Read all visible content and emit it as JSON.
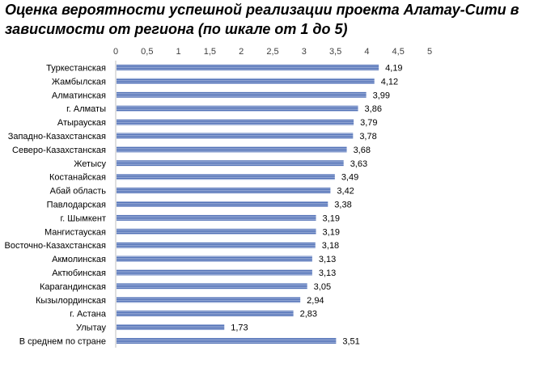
{
  "chart_data": {
    "type": "bar",
    "orientation": "horizontal",
    "title": "Оценка вероятности успешной реализации проекта Алатау-Сити в зависимости от региона (по шкале от 1 до 5)",
    "xlim": [
      0,
      5
    ],
    "x_ticks": [
      "0",
      "0,5",
      "1",
      "1,5",
      "2",
      "2,5",
      "3",
      "3,5",
      "4",
      "4,5",
      "5"
    ],
    "x_axis_position": "top",
    "grid": false,
    "legend": "none",
    "bar_color": "#4f6fb5",
    "categories": [
      "Туркестанская",
      "Жамбылская",
      "Алматинская",
      "г. Алматы",
      "Атырауская",
      "Западно-Казахстанская",
      "Северо-Казахстанская",
      "Жетысу",
      "Костанайская",
      "Абай область",
      "Павлодарская",
      "г. Шымкент",
      "Мангистауская",
      "Восточно-Казахстанская",
      "Акмолинская",
      "Актюбинская",
      "Карагандинская",
      "Кызылординская",
      "г. Астана",
      "Улытау",
      "В среднем по стране"
    ],
    "values": [
      4.19,
      4.12,
      3.99,
      3.86,
      3.79,
      3.78,
      3.68,
      3.63,
      3.49,
      3.42,
      3.38,
      3.19,
      3.19,
      3.18,
      3.13,
      3.13,
      3.05,
      2.94,
      2.83,
      1.73,
      3.51
    ],
    "value_labels": [
      "4,19",
      "4,12",
      "3,99",
      "3,86",
      "3,79",
      "3,78",
      "3,68",
      "3,63",
      "3,49",
      "3,42",
      "3,38",
      "3,19",
      "3,19",
      "3,18",
      "3,13",
      "3,13",
      "3,05",
      "2,94",
      "2,83",
      "1,73",
      "3,51"
    ]
  }
}
